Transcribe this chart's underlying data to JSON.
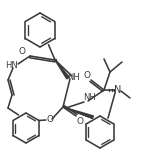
{
  "bg": "#ffffff",
  "lc": "#3a3a3a",
  "lw": 1.15,
  "figsize": [
    1.5,
    1.62
  ],
  "dpi": 100,
  "xlim": [
    0,
    150
  ],
  "ylim": [
    0,
    162
  ]
}
